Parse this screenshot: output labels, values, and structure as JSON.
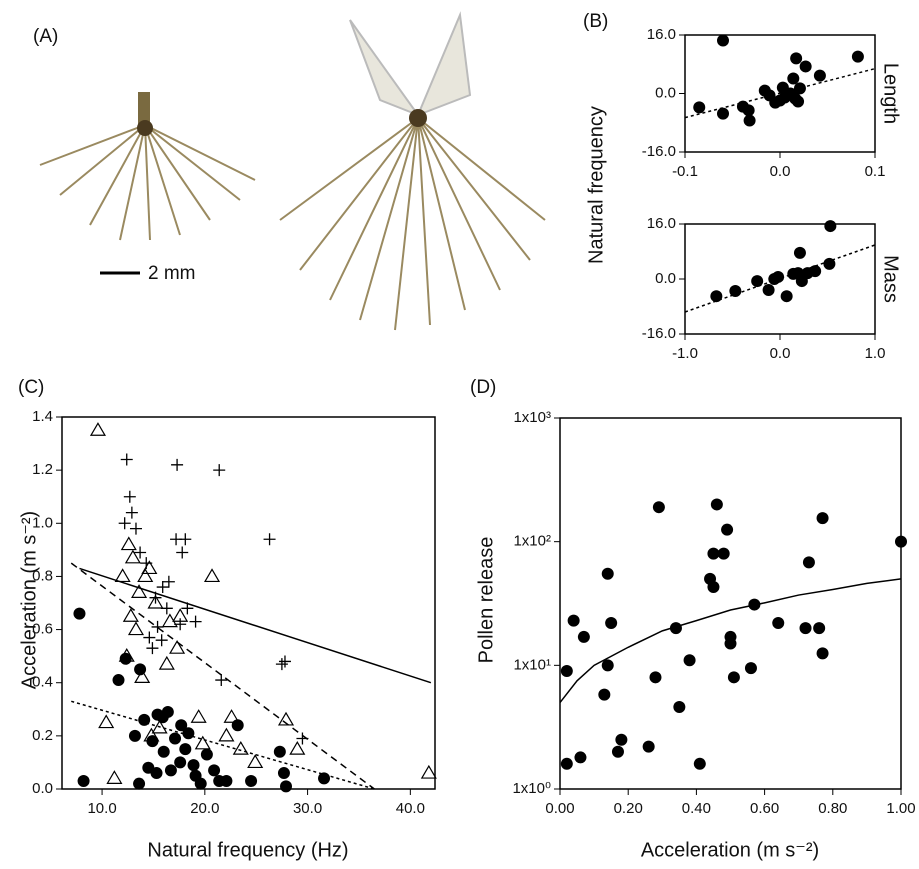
{
  "chart_data": [
    {
      "type": "image",
      "title": "(A)",
      "scale_label": "2 mm"
    },
    {
      "type": "scatter",
      "title": "(B)",
      "ylabel": "Natural frequency",
      "side_label": "Length",
      "xlim": [
        -0.1,
        0.1
      ],
      "xticks": [
        -0.1,
        {
          "value": 0,
          "label": "0.0"
        },
        0.1
      ],
      "ylim": [
        -16,
        16
      ],
      "yticks": [
        {
          "value": -16,
          "label": "-16.0"
        },
        {
          "value": 0,
          "label": "0.0"
        },
        {
          "value": 16,
          "label": "16.0"
        }
      ],
      "series": [
        {
          "marker": "circle",
          "color": "#000000",
          "x": [
            -0.085,
            -0.06,
            -0.06,
            -0.039,
            -0.033,
            -0.032,
            -0.016,
            -0.011,
            -0.005,
            0,
            0.005,
            0.011,
            0.003,
            0.016,
            0.014,
            0.017,
            0.021,
            0.027,
            0.019,
            0.042,
            0.082
          ],
          "values": [
            -3.8,
            14.5,
            -5.5,
            -3.6,
            -4.6,
            -7.4,
            0.8,
            -0.5,
            -2.5,
            -1.9,
            -1.1,
            0,
            1.6,
            -1.4,
            4.1,
            9.6,
            1.4,
            7.4,
            -2.2,
            4.9,
            10.1
          ]
        }
      ],
      "lines": [
        {
          "style": "dotted",
          "x": [
            -0.1,
            0.1
          ],
          "y": [
            -6.6,
            6.8
          ]
        }
      ]
    },
    {
      "type": "scatter",
      "side_label": "Mass",
      "xlim": [
        -1,
        1
      ],
      "xticks": [
        {
          "value": -1,
          "label": "-1.0"
        },
        {
          "value": 0,
          "label": "0.0"
        },
        {
          "value": 1,
          "label": "1.0"
        }
      ],
      "ylim": [
        -16,
        16
      ],
      "yticks": [
        {
          "value": -16,
          "label": "-16.0"
        },
        {
          "value": 0,
          "label": "0.0"
        },
        {
          "value": 16,
          "label": "16.0"
        }
      ],
      "series": [
        {
          "marker": "circle",
          "color": "#000000",
          "x": [
            -0.67,
            -0.47,
            -0.24,
            -0.12,
            -0.06,
            -0.02,
            0.07,
            0.14,
            0.19,
            0.21,
            0.23,
            0.29,
            0.37,
            0.52,
            0.53
          ],
          "values": [
            -5,
            -3.5,
            -0.6,
            -3.2,
            0,
            0.6,
            -5,
            1.5,
            1.7,
            7.6,
            -0.6,
            1.7,
            2.3,
            4.4,
            15.4
          ]
        }
      ],
      "lines": [
        {
          "style": "dotted",
          "x": [
            -1,
            1
          ],
          "y": [
            -9.6,
            9.9
          ]
        }
      ]
    },
    {
      "type": "scatter",
      "title": "(C)",
      "xlabel": "Natural frequency (Hz)",
      "ylabel": "Acceleration (m s⁻²)",
      "xlim": [
        6.1,
        42.4
      ],
      "xticks": [
        {
          "value": 10,
          "label": "10.0"
        },
        {
          "value": 20,
          "label": "20.0"
        },
        {
          "value": 30,
          "label": "30.0"
        },
        {
          "value": 40,
          "label": "40.0"
        }
      ],
      "ylim": [
        0,
        1.4
      ],
      "yticks": [
        {
          "value": 0,
          "label": "0.0"
        },
        0.2,
        0.4,
        0.6,
        0.8,
        {
          "value": 1,
          "label": "1.0"
        },
        1.2,
        1.4
      ],
      "series": [
        {
          "marker": "triangle",
          "color": "#000000",
          "x": [
            9.6,
            10.4,
            11.2,
            12,
            12.4,
            12.6,
            12.8,
            13,
            13.3,
            13.6,
            13.9,
            14.2,
            14.6,
            14.8,
            15.2,
            15.6,
            16.3,
            16.6,
            17.3,
            17.6,
            19.4,
            19.8,
            20.7,
            22.1,
            22.6,
            23.5,
            24.9,
            27.9,
            29,
            41.8
          ],
          "values": [
            1.35,
            0.25,
            0.04,
            0.8,
            0.5,
            0.92,
            0.65,
            0.87,
            0.6,
            0.74,
            0.42,
            0.8,
            0.83,
            0.2,
            0.7,
            0.23,
            0.47,
            0.63,
            0.53,
            0.65,
            0.27,
            0.17,
            0.8,
            0.2,
            0.27,
            0.15,
            0.1,
            0.26,
            0.15,
            0.06
          ]
        },
        {
          "marker": "plus",
          "color": "#000000",
          "x": [
            12.4,
            12.7,
            12.9,
            12.2,
            13.3,
            13.7,
            14.3,
            15.2,
            15.9,
            16.3,
            17.2,
            17.3,
            17.8,
            18.1,
            18.3,
            19.1,
            15.4,
            15.8,
            17.6,
            14.6,
            21.4,
            21.6,
            26.3,
            27.5,
            27.8,
            29.5,
            16.5,
            14.9
          ],
          "values": [
            1.24,
            1.1,
            1.04,
            1.0,
            0.98,
            0.89,
            0.85,
            0.72,
            0.76,
            0.68,
            0.94,
            1.22,
            0.89,
            0.94,
            0.68,
            0.63,
            0.61,
            0.56,
            0.62,
            0.57,
            1.2,
            0.41,
            0.94,
            0.47,
            0.48,
            0.19,
            0.78,
            0.53
          ]
        },
        {
          "marker": "circle",
          "color": "#000000",
          "x": [
            7.8,
            8.2,
            11.6,
            12.3,
            13.2,
            13.7,
            14.1,
            14.5,
            14.9,
            15.4,
            15.9,
            16.4,
            16.7,
            17.1,
            17.6,
            18.1,
            18.4,
            19.1,
            19.6,
            20.2,
            20.9,
            21.4,
            22.1,
            23.2,
            24.5,
            27.3,
            27.7,
            27.9,
            13.6,
            15.3,
            31.6,
            16,
            18.9,
            17.7
          ],
          "values": [
            0.66,
            0.03,
            0.41,
            0.49,
            0.2,
            0.45,
            0.26,
            0.08,
            0.18,
            0.28,
            0.27,
            0.29,
            0.07,
            0.19,
            0.1,
            0.15,
            0.21,
            0.05,
            0.02,
            0.13,
            0.07,
            0.03,
            0.03,
            0.24,
            0.03,
            0.14,
            0.06,
            0.01,
            0.02,
            0.06,
            0.04,
            0.14,
            0.09,
            0.24
          ]
        }
      ],
      "lines": [
        {
          "style": "solid",
          "x": [
            7.8,
            42
          ],
          "y": [
            0.83,
            0.4
          ]
        },
        {
          "style": "dashed",
          "x": [
            7,
            36.5
          ],
          "y": [
            0.85,
            0
          ]
        },
        {
          "style": "dotted",
          "x": [
            7,
            36.5
          ],
          "y": [
            0.33,
            0
          ]
        }
      ]
    },
    {
      "type": "scatter",
      "title": "(D)",
      "xlabel": "Acceleration (m s⁻²)",
      "ylabel": "Pollen release",
      "log_y": true,
      "xlim": [
        0,
        1
      ],
      "xticks": [
        {
          "value": 0,
          "label": "0.00"
        },
        {
          "value": 0.2,
          "label": "0.20"
        },
        {
          "value": 0.4,
          "label": "0.40"
        },
        {
          "value": 0.6,
          "label": "0.60"
        },
        {
          "value": 0.8,
          "label": "0.80"
        },
        {
          "value": 1,
          "label": "1.00"
        }
      ],
      "ylim": [
        1,
        1000
      ],
      "yticks": [
        {
          "value": 1,
          "label": "1x10⁰"
        },
        {
          "value": 10,
          "label": "1x10¹"
        },
        {
          "value": 100,
          "label": "1x10²"
        },
        {
          "value": 1000,
          "label": "1x10³"
        }
      ],
      "series": [
        {
          "marker": "circle",
          "color": "#000000",
          "x": [
            0.02,
            0.02,
            0.04,
            0.06,
            0.07,
            0.13,
            0.14,
            0.14,
            0.15,
            0.17,
            0.18,
            0.26,
            0.28,
            0.29,
            0.34,
            0.35,
            0.38,
            0.41,
            0.44,
            0.45,
            0.45,
            0.46,
            0.48,
            0.49,
            0.5,
            0.5,
            0.51,
            0.56,
            0.57,
            0.64,
            0.72,
            0.73,
            0.76,
            0.77,
            0.77,
            1.0
          ],
          "values": [
            1.6,
            9,
            23,
            1.8,
            17,
            5.8,
            10,
            55,
            22,
            2,
            2.5,
            2.2,
            8,
            190,
            20,
            4.6,
            11,
            1.6,
            50,
            43,
            80,
            200,
            80,
            125,
            17,
            15,
            8,
            9.5,
            31,
            22,
            20,
            68,
            20,
            12.5,
            155,
            100
          ]
        }
      ],
      "lines": [
        {
          "style": "solid",
          "x": [
            0,
            0.05,
            0.1,
            0.2,
            0.3,
            0.4,
            0.5,
            0.6,
            0.7,
            0.8,
            0.9,
            1.0
          ],
          "y": [
            5,
            7.5,
            10,
            14,
            19,
            23,
            28,
            32,
            37,
            41,
            46,
            50
          ]
        }
      ]
    }
  ]
}
